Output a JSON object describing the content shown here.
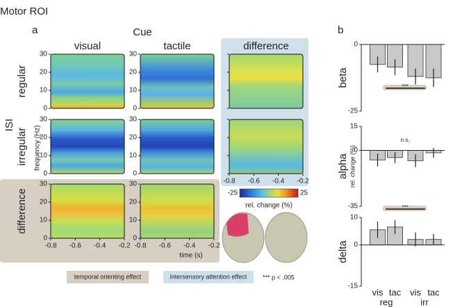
{
  "header": {
    "title": "Motor ROI"
  },
  "panel_a": {
    "label": "a",
    "cue_label": "Cue",
    "columns": [
      "visual",
      "tactile",
      "difference"
    ],
    "isi_label": "ISI",
    "rows": [
      "regular",
      "irregular",
      "difference"
    ],
    "y_axis_label": "frequency (Hz)",
    "ylim": [
      0,
      30
    ],
    "yticks": [
      0,
      10,
      20,
      30
    ],
    "xlim": [
      -0.8,
      -0.2
    ],
    "xticks": [
      -0.8,
      -0.6,
      -0.4,
      -0.2
    ],
    "x_axis_label": "time (s)",
    "colorbar": {
      "ticks": [
        -25,
        25
      ],
      "label": "rel. change (%)"
    },
    "legend": {
      "temporal": "temporal orienting effect",
      "intersensory": "intersensory attention effect",
      "significance": "***  p < .005"
    }
  },
  "panel_b": {
    "label": "b"
  },
  "chart_data": [
    {
      "type": "bar",
      "ylabel": "beta",
      "categories": [
        null,
        null,
        null,
        null
      ],
      "values": [
        -7.5,
        -8.5,
        -12,
        -12.5
      ],
      "errors": [
        3,
        3,
        3,
        3.5
      ],
      "color": "#c8c8c8",
      "ylim": [
        -25,
        0
      ],
      "yticks": [
        -25,
        0
      ],
      "annotation": "***"
    },
    {
      "type": "bar",
      "ylabel": "alpha",
      "axis_label": "rel. change (%)",
      "categories": [
        null,
        null,
        null,
        null
      ],
      "values": [
        -6,
        -4.5,
        -6.5,
        -1.5
      ],
      "errors": [
        4,
        3.5,
        4,
        3
      ],
      "color": "#c8c8c8",
      "ylim": [
        -35,
        15
      ],
      "yticks": [
        -35,
        0,
        15
      ],
      "annotation": "n.s."
    },
    {
      "type": "bar",
      "ylabel": "delta",
      "categories": [
        "vis",
        "tac",
        "vis",
        "tac"
      ],
      "groups": [
        "reg",
        "irr"
      ],
      "values": [
        5.5,
        6.5,
        2,
        2
      ],
      "errors": [
        3,
        2.5,
        2.5,
        2
      ],
      "color": "#c8c8c8",
      "ylim": [
        -15,
        10
      ],
      "yticks": [
        -15,
        0,
        10
      ],
      "annotation": "***"
    }
  ]
}
